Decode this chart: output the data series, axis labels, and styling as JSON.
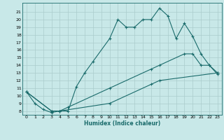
{
  "xlabel": "Humidex (Indice chaleur)",
  "background_color": "#c8e8e8",
  "line_color": "#1a6b6b",
  "grid_color": "#aacccc",
  "xlim": [
    -0.5,
    23.5
  ],
  "ylim": [
    7.5,
    22.2
  ],
  "xticks": [
    0,
    1,
    2,
    3,
    4,
    5,
    6,
    7,
    8,
    9,
    10,
    11,
    12,
    13,
    14,
    15,
    16,
    17,
    18,
    19,
    20,
    21,
    22,
    23
  ],
  "yticks": [
    8,
    9,
    10,
    11,
    12,
    13,
    14,
    15,
    16,
    17,
    18,
    19,
    20,
    21
  ],
  "series": [
    {
      "x": [
        0,
        1,
        2,
        3,
        4,
        5,
        6,
        7,
        8,
        10,
        11,
        12,
        13,
        14,
        15,
        16,
        17,
        18,
        19,
        20,
        21,
        22,
        23
      ],
      "y": [
        10.5,
        9,
        8.2,
        7.8,
        8.0,
        8.0,
        11.2,
        13.0,
        14.5,
        17.5,
        20.0,
        19.0,
        19.0,
        20.0,
        20.0,
        21.5,
        20.5,
        17.5,
        19.5,
        17.8,
        15.5,
        14.0,
        12.8
      ]
    },
    {
      "x": [
        0,
        3,
        4,
        5,
        10,
        15,
        16,
        19,
        20,
        21,
        22,
        23
      ],
      "y": [
        10.5,
        8.0,
        8.0,
        8.5,
        11.0,
        13.5,
        14.0,
        15.5,
        15.5,
        14.0,
        14.0,
        13.0
      ]
    },
    {
      "x": [
        0,
        3,
        4,
        10,
        15,
        16,
        23
      ],
      "y": [
        10.5,
        8.0,
        8.0,
        9.0,
        11.5,
        12.0,
        13.0
      ]
    }
  ]
}
